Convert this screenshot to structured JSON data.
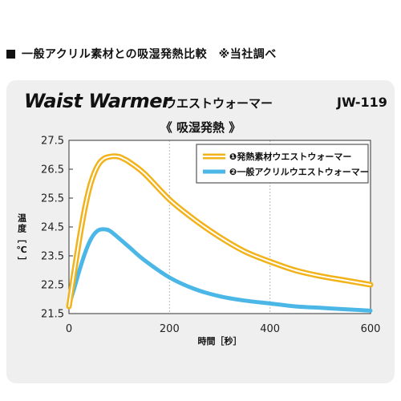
{
  "header": {
    "square_icon": "black-square-icon",
    "text": "一般アクリル素材との吸湿発熱比較　※当社調べ"
  },
  "product": {
    "name": "Waist Warmer",
    "subname": "ウエストウォーマー",
    "model": "JW-119"
  },
  "chart_data": {
    "type": "line",
    "title": "《 吸湿発熱 》",
    "xlabel": "時間［秒］",
    "ylabel": "温度［℃］",
    "xlim": [
      0,
      600
    ],
    "ylim": [
      21.5,
      27.5
    ],
    "x_ticks": [
      "0",
      "200",
      "400",
      "600"
    ],
    "y_ticks": [
      "27.5",
      "26.5",
      "25.5",
      "24.5",
      "23.5",
      "22.5",
      "21.5"
    ],
    "grid": "vertical",
    "legend_position": "top-right",
    "series": [
      {
        "name": "❶発熱素材ウエストウォーマー",
        "color": "#f2b21a",
        "style": "double-line",
        "x": [
          0,
          10,
          20,
          30,
          40,
          50,
          60,
          70,
          80,
          90,
          100,
          110,
          120,
          150,
          200,
          250,
          300,
          350,
          400,
          450,
          500,
          550,
          600
        ],
        "y": [
          21.75,
          22.9,
          24.0,
          25.0,
          25.8,
          26.35,
          26.7,
          26.87,
          26.93,
          26.95,
          26.93,
          26.85,
          26.75,
          26.35,
          25.45,
          24.75,
          24.15,
          23.65,
          23.3,
          23.0,
          22.8,
          22.65,
          22.5
        ]
      },
      {
        "name": "❷一般アクリルウエストウォーマー",
        "color": "#4bb7e6",
        "style": "solid",
        "x": [
          0,
          10,
          20,
          30,
          40,
          50,
          60,
          70,
          80,
          90,
          100,
          120,
          150,
          200,
          250,
          300,
          350,
          400,
          450,
          500,
          550,
          600
        ],
        "y": [
          21.8,
          22.35,
          22.95,
          23.5,
          23.95,
          24.25,
          24.4,
          24.42,
          24.38,
          24.25,
          24.1,
          23.8,
          23.35,
          22.75,
          22.35,
          22.1,
          21.95,
          21.85,
          21.75,
          21.7,
          21.65,
          21.6
        ]
      }
    ]
  }
}
